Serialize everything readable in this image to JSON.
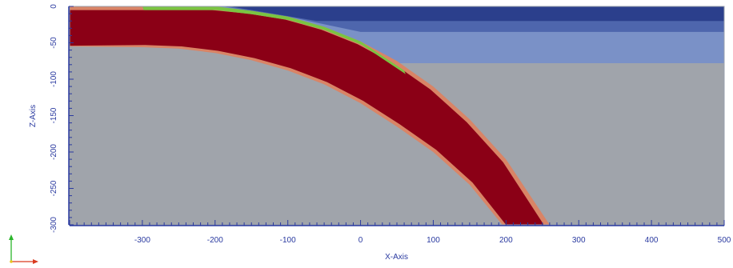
{
  "chart_data": {
    "type": "other",
    "xlabel": "X-Axis",
    "ylabel": "Z-Axis",
    "x_range": [
      -400,
      500
    ],
    "z_range": [
      -300,
      0
    ],
    "x_ticks": [
      -300,
      -200,
      -100,
      0,
      100,
      200,
      300,
      400,
      500
    ],
    "z_ticks": [
      0,
      -50,
      -100,
      -150,
      -200,
      -250,
      -300
    ],
    "colors": {
      "ocean_deep": "#2b3f8c",
      "ocean_mid": "#4e66ad",
      "ocean_shallow": "#7a91c7",
      "mantle": "#a0a4ab",
      "slab_core": "#8b0016",
      "slab_rim": "#d98466",
      "sediment": "#7ac442",
      "axis": "#2a3aa0"
    },
    "regions": [
      {
        "name": "mantle"
      },
      {
        "name": "ocean-layer-shallow"
      },
      {
        "name": "ocean-layer-mid"
      },
      {
        "name": "ocean-layer-deep"
      },
      {
        "name": "subducting-slab"
      },
      {
        "name": "sediment-layer"
      }
    ],
    "slab_top": [
      [
        -400,
        0
      ],
      [
        -200,
        -1
      ],
      [
        -150,
        -6
      ],
      [
        -100,
        -14
      ],
      [
        -50,
        -28
      ],
      [
        0,
        -48
      ],
      [
        50,
        -75
      ],
      [
        100,
        -110
      ],
      [
        150,
        -155
      ],
      [
        200,
        -210
      ],
      [
        260,
        -300
      ]
    ],
    "slab_bottom": [
      [
        -400,
        -55
      ],
      [
        -300,
        -56
      ],
      [
        -250,
        -58
      ],
      [
        -200,
        -64
      ],
      [
        -150,
        -74
      ],
      [
        -100,
        -88
      ],
      [
        -50,
        -107
      ],
      [
        0,
        -133
      ],
      [
        50,
        -165
      ],
      [
        100,
        -200
      ],
      [
        150,
        -245
      ],
      [
        195,
        -300
      ]
    ],
    "sediment_top": [
      [
        -300,
        0
      ],
      [
        -200,
        0
      ],
      [
        -150,
        -6
      ],
      [
        -100,
        -14
      ],
      [
        -50,
        -28
      ],
      [
        0,
        -48
      ],
      [
        60,
        -88
      ]
    ],
    "ocean_boundary": [
      {
        "layer": "deep",
        "z": -20
      },
      {
        "layer": "mid",
        "z": -35
      },
      {
        "layer": "shallow",
        "z": -78
      }
    ]
  },
  "orientation": {
    "up_color": "#2bb52b",
    "right_color": "#d93a1f",
    "origin_color": "#e8c51f"
  }
}
